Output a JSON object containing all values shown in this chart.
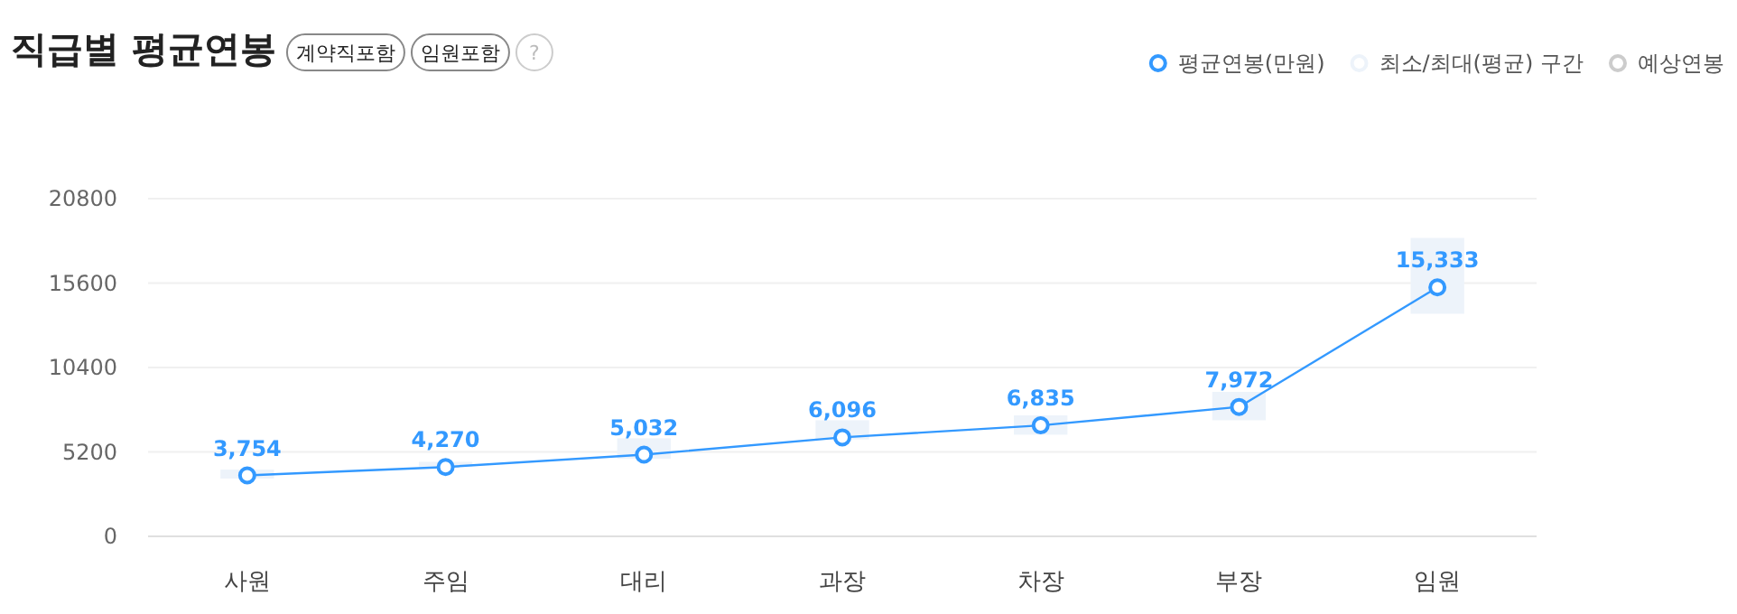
{
  "chart_data": {
    "type": "line",
    "title": "직급별 평균연봉",
    "annotations": [
      "계약직포함",
      "임원포함",
      "?"
    ],
    "categories": [
      "사원",
      "주임",
      "대리",
      "과장",
      "차장",
      "부장",
      "임원"
    ],
    "series": [
      {
        "name": "평균연봉(만원)",
        "color": "#3399ff",
        "values": [
          3754,
          4270,
          5032,
          6096,
          6835,
          7972,
          15333
        ],
        "value_labels": [
          "3,754",
          "4,270",
          "5,032",
          "6,096",
          "6,835",
          "7,972",
          "15,333"
        ]
      },
      {
        "name": "최소/최대(평균) 구간",
        "type": "bar",
        "color": "#edf3fa",
        "base": [
          3560,
          4300,
          4780,
          5970,
          6260,
          7150,
          13710
        ],
        "values": [
          550,
          290,
          1260,
          1180,
          1190,
          1750,
          4670
        ]
      },
      {
        "name": "예상연봉",
        "color": "#cccccc",
        "values": [
          null,
          null,
          null,
          null,
          null,
          null,
          null
        ]
      }
    ],
    "ylim": [
      0,
      20800
    ],
    "yticks": [
      0,
      5200,
      10400,
      15600,
      20800
    ],
    "grid": "y",
    "legend": "top right",
    "marker": "circle"
  }
}
